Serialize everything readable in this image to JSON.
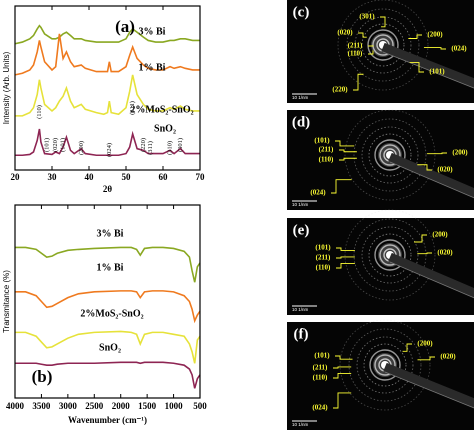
{
  "chart_data": [
    {
      "type": "line",
      "panel_label": "(a)",
      "xlabel": "2θ",
      "ylabel": "Intensity (Arb. Units)",
      "x": [
        20,
        22,
        24,
        25,
        26,
        26.6,
        27,
        28,
        30,
        31,
        32,
        33,
        33.9,
        35,
        36,
        37.9,
        39,
        42,
        44,
        45,
        45.5,
        46,
        48,
        50,
        51,
        51.8,
        53,
        54.7,
        56,
        58,
        60,
        61.9,
        63,
        64.7,
        66,
        68,
        70
      ],
      "xlim": [
        20,
        70
      ],
      "xticks": [
        20,
        30,
        40,
        50,
        60,
        70
      ],
      "ylim": [
        0,
        100
      ],
      "series": [
        {
          "name": "3% Bi",
          "color": "#8aa822",
          "values": [
            77,
            78,
            80,
            82,
            86,
            88,
            87,
            83,
            80,
            80,
            81,
            83,
            84,
            82,
            80,
            80,
            79,
            78,
            78,
            78,
            78,
            78,
            78,
            80,
            84,
            86,
            84,
            81,
            79,
            78,
            78,
            79,
            79,
            80,
            80,
            79,
            79
          ]
        },
        {
          "name": "1% Bi",
          "color": "#ef7a1f",
          "values": [
            58,
            59,
            61,
            64,
            72,
            79,
            75,
            66,
            61,
            63,
            83,
            68,
            72,
            66,
            63,
            64,
            62,
            60,
            60,
            60,
            66,
            60,
            60,
            63,
            70,
            75,
            68,
            64,
            62,
            61,
            61,
            63,
            62,
            63,
            62,
            61,
            61
          ]
        },
        {
          "name": "2%MoS₂-SnO₂",
          "color": "#e6e23a",
          "values": [
            33,
            33,
            35,
            38,
            46,
            55,
            50,
            40,
            36,
            38,
            42,
            45,
            50,
            42,
            38,
            40,
            37,
            35,
            34,
            35,
            42,
            35,
            34,
            38,
            48,
            58,
            46,
            40,
            37,
            36,
            36,
            38,
            37,
            39,
            37,
            36,
            36
          ]
        },
        {
          "name": "SnO₂",
          "color": "#8e2553",
          "values": [
            9,
            9,
            9.5,
            11,
            18,
            25,
            17,
            10,
            9.5,
            11,
            10,
            14,
            20,
            12,
            10,
            13,
            10,
            9,
            9,
            9,
            9,
            9,
            9,
            10,
            14,
            22,
            13,
            12,
            10,
            10,
            10,
            12,
            10,
            13,
            10,
            10,
            10
          ]
        }
      ],
      "annotations": [
        "(110)",
        "(101)",
        "(020)",
        "(101)",
        "(200)",
        "(024)",
        "(211)",
        "(220)",
        "(311)",
        "(310)",
        "(301)"
      ]
    },
    {
      "type": "line",
      "panel_label": "(b)",
      "xlabel": "Wavenumber (cm⁻¹)",
      "ylabel": "Transmitance (%)",
      "x": [
        4000,
        3800,
        3600,
        3500,
        3400,
        3300,
        3200,
        3000,
        2800,
        2500,
        2000,
        1800,
        1700,
        1630,
        1550,
        1400,
        1200,
        1000,
        800,
        700,
        650,
        600,
        550,
        500
      ],
      "xlim": [
        4000,
        500
      ],
      "xticks": [
        4000,
        3500,
        3000,
        2500,
        2000,
        1500,
        1000,
        500
      ],
      "ylim": [
        0,
        100
      ],
      "series": [
        {
          "name": "3% Bi",
          "color": "#8aa822",
          "values": [
            78,
            78,
            77,
            75,
            73,
            73.5,
            75,
            76.5,
            77,
            77.5,
            78,
            78,
            77,
            74,
            77.5,
            78,
            78,
            77.5,
            76,
            73,
            66,
            60,
            68,
            70
          ]
        },
        {
          "name": "1% Bi",
          "color": "#ef7a1f",
          "values": [
            55,
            55,
            53,
            50,
            47,
            47.5,
            49,
            52,
            54,
            55,
            55.5,
            55.5,
            55,
            52,
            55,
            55.5,
            55.5,
            55,
            53,
            50,
            46,
            40,
            43,
            45
          ]
        },
        {
          "name": "2%MoS₂-SnO₂",
          "color": "#e6e23a",
          "values": [
            34,
            34,
            32,
            29,
            26,
            26.5,
            28,
            31,
            33,
            34,
            34.5,
            34,
            33,
            28,
            33,
            34,
            34,
            33,
            32,
            28,
            24,
            18,
            30,
            32
          ]
        },
        {
          "name": "SnO₂",
          "color": "#8e2553",
          "values": [
            18,
            18,
            18,
            17.5,
            17,
            17,
            17.5,
            18,
            18,
            18,
            18.5,
            18.5,
            18.5,
            18,
            18.5,
            18.5,
            18.5,
            18,
            17,
            15,
            12,
            5,
            10,
            12
          ]
        }
      ]
    }
  ],
  "saed_panels": [
    {
      "label": "(c)",
      "indices": [
        "(301)",
        "(020)",
        "(211)",
        "(110)",
        "(200)",
        "(024)",
        "(220)",
        "(101)"
      ],
      "scale": "10 1/nm"
    },
    {
      "label": "(d)",
      "indices": [
        "(101)",
        "(211)",
        "(110)",
        "(200)",
        "(020)",
        "(024)"
      ],
      "scale": "10 1/nm"
    },
    {
      "label": "(e)",
      "indices": [
        "(101)",
        "(211)",
        "(110)",
        "(200)",
        "(020)"
      ],
      "scale": "10 1/nm"
    },
    {
      "label": "(f)",
      "indices": [
        "(101)",
        "(211)",
        "(110)",
        "(200)",
        "(020)",
        "(024)"
      ],
      "scale": "10 1/nm"
    }
  ]
}
